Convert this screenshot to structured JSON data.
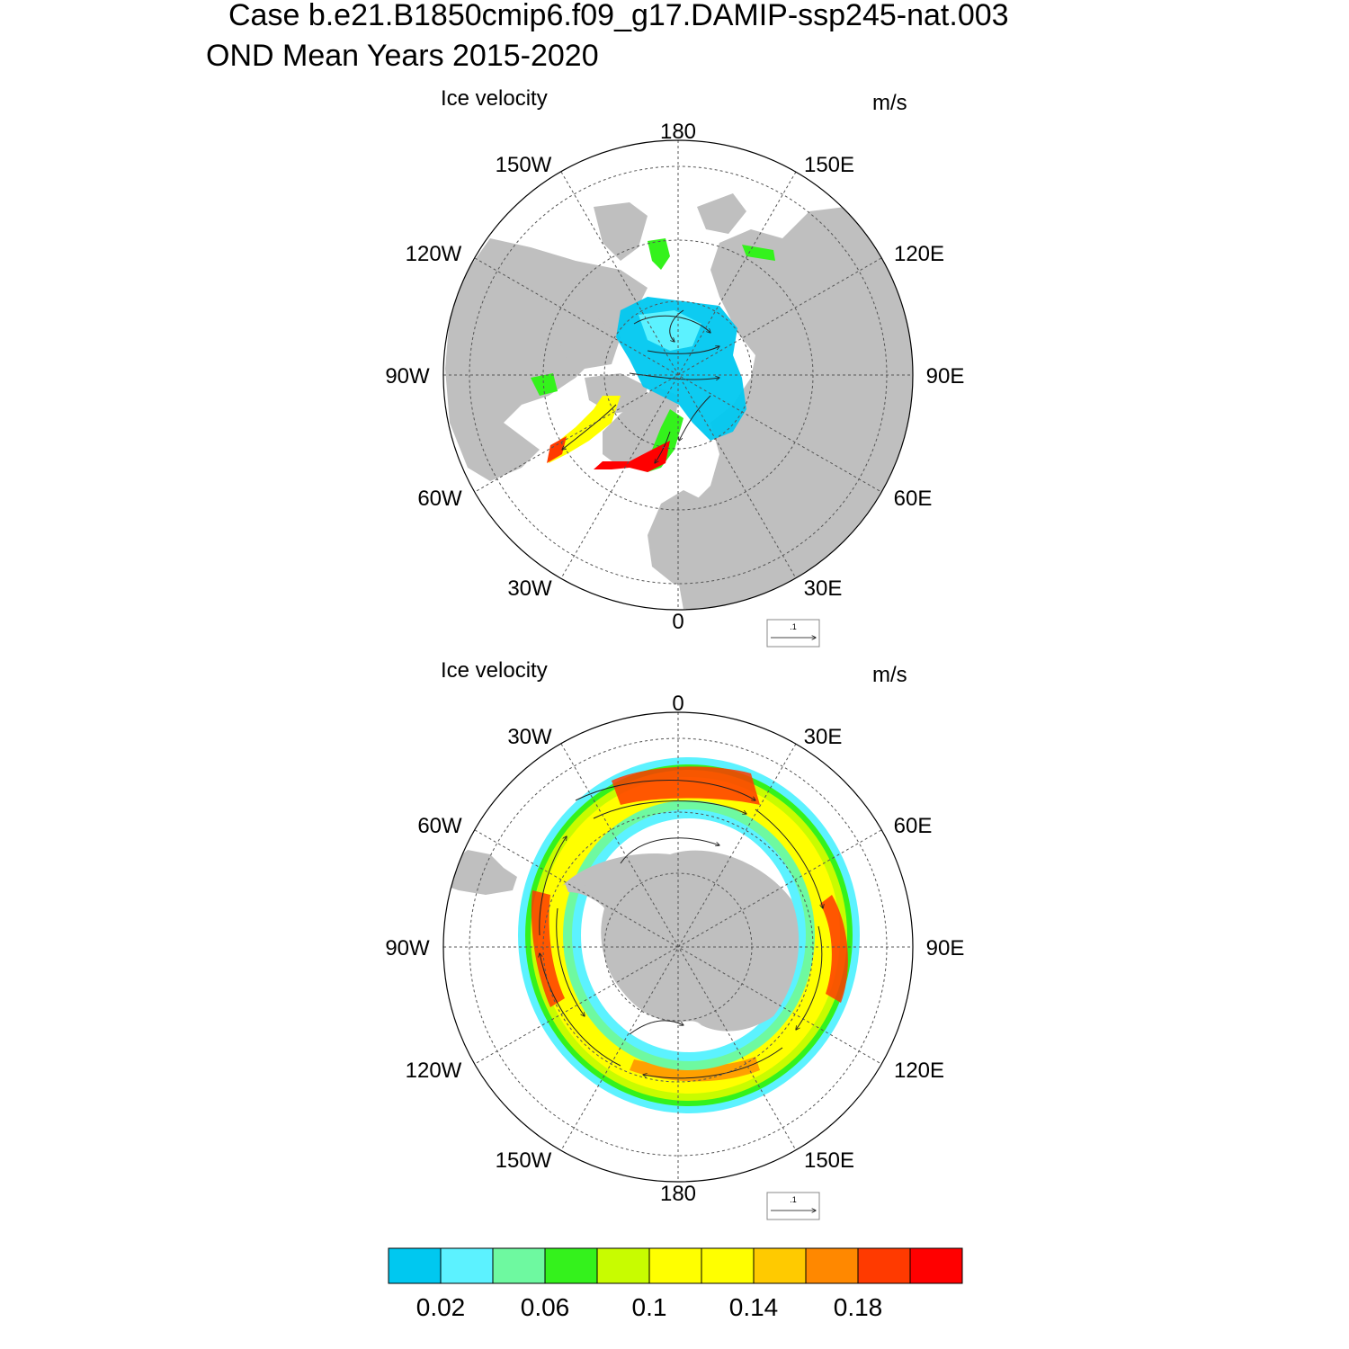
{
  "title": {
    "line1": "Case b.e21.B1850cmip6.f09_g17.DAMIP-ssp245-nat.003",
    "line2": "OND Mean   Years 2015-2020"
  },
  "colors": {
    "land": "#bfbfbf",
    "grid": "#555555",
    "vector": "#222222",
    "levels": [
      "#00c8f0",
      "#5cf2ff",
      "#6ef9a0",
      "#34f21c",
      "#c8fc00",
      "#ffff00",
      "#ffff00",
      "#ffca00",
      "#ff8800",
      "#ff3a00",
      "#ff0000"
    ]
  },
  "panels": [
    {
      "id": "north",
      "title": "Ice velocity",
      "units": "m/s",
      "hemisphere": "Arctic",
      "lon_labels": {
        "top": "180",
        "top_right": "150E",
        "right_upper": "120E",
        "right": "90E",
        "right_lower": "60E",
        "bottom_right": "30E",
        "bottom": "0",
        "bottom_left": "30W",
        "left_lower": "60W",
        "left": "90W",
        "left_upper": "120W",
        "top_left": "150W"
      },
      "ref_vector_label": ".1"
    },
    {
      "id": "south",
      "title": "Ice velocity",
      "units": "m/s",
      "hemisphere": "Antarctic",
      "lon_labels": {
        "top": "0",
        "top_right": "30E",
        "right_upper": "60E",
        "right": "90E",
        "right_lower": "120E",
        "bottom_right": "150E",
        "bottom": "180",
        "bottom_left": "150W",
        "left_lower": "120W",
        "left": "90W",
        "left_upper": "60W",
        "top_left": "30W"
      },
      "ref_vector_label": ".1"
    }
  ],
  "colorbar": {
    "n_boxes": 11,
    "tick_labels": [
      "0.02",
      "0.06",
      "0.1",
      "0.14",
      "0.18"
    ]
  }
}
